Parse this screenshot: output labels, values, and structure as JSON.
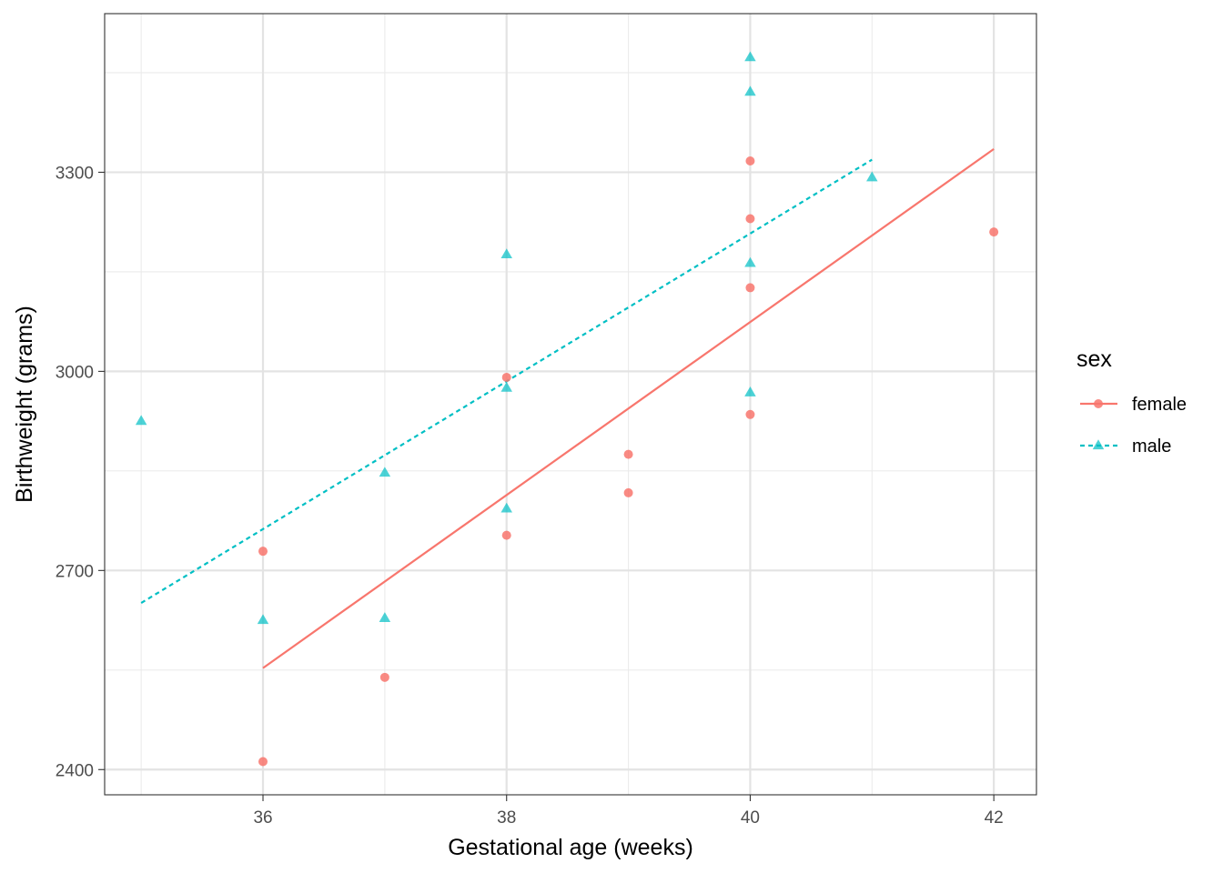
{
  "chart_data": {
    "type": "scatter",
    "xlabel": "Gestational age (weeks)",
    "ylabel": "Birthweight (grams)",
    "xlim": [
      34.7,
      42.35
    ],
    "ylim": [
      2362,
      3539
    ],
    "x_ticks": [
      36,
      38,
      40,
      42
    ],
    "x_tick_labels": [
      "36",
      "38",
      "40",
      "42"
    ],
    "y_ticks": [
      2400,
      2700,
      3000,
      3300
    ],
    "y_tick_labels": [
      "2400",
      "2700",
      "3000",
      "3300"
    ],
    "x_minor_grid": [
      35,
      37,
      39,
      41
    ],
    "y_minor_grid": [
      2550,
      2850,
      3150,
      3450
    ],
    "grid": true,
    "legend": {
      "title": "sex",
      "position": "right"
    },
    "series": [
      {
        "name": "female",
        "color": "#F8766D",
        "marker": "circle",
        "line_style": "solid",
        "points": [
          [
            36,
            2729
          ],
          [
            36,
            2412
          ],
          [
            37,
            2539
          ],
          [
            38,
            2753
          ],
          [
            38,
            2991
          ],
          [
            39,
            2875
          ],
          [
            39,
            2817
          ],
          [
            40,
            3317
          ],
          [
            40,
            3230
          ],
          [
            40,
            3126
          ],
          [
            40,
            2935
          ],
          [
            42,
            3210
          ]
        ],
        "fit_line": [
          [
            36,
            2553
          ],
          [
            42,
            3335
          ]
        ]
      },
      {
        "name": "male",
        "color": "#00BFC4",
        "marker": "triangle",
        "line_style": "dashed",
        "points": [
          [
            35,
            2925
          ],
          [
            36,
            2625
          ],
          [
            37,
            2847
          ],
          [
            37,
            2628
          ],
          [
            38,
            3176
          ],
          [
            38,
            2975
          ],
          [
            38,
            2793
          ],
          [
            40,
            3473
          ],
          [
            40,
            3421
          ],
          [
            40,
            3163
          ],
          [
            40,
            2968
          ],
          [
            41,
            3292
          ]
        ],
        "fit_line": [
          [
            35,
            2651
          ],
          [
            41,
            3319
          ]
        ]
      }
    ]
  }
}
